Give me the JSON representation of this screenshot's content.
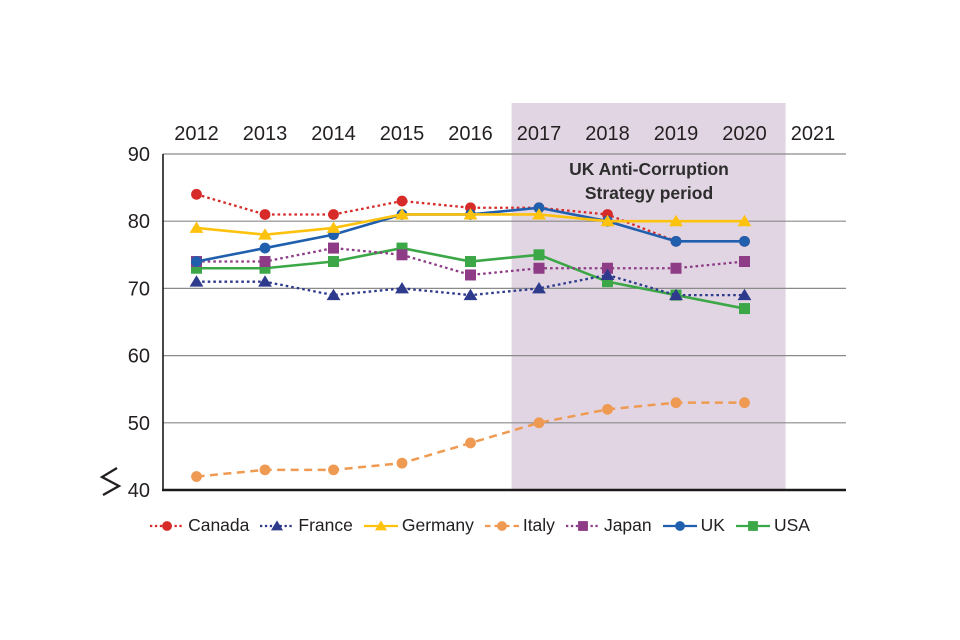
{
  "chart_data": {
    "type": "line",
    "title": "",
    "categories": [
      "2012",
      "2013",
      "2014",
      "2015",
      "2016",
      "2017",
      "2018",
      "2019",
      "2020",
      "2021"
    ],
    "xlabel": "",
    "ylabel": "",
    "ylim": [
      40,
      90
    ],
    "yticks": [
      40,
      50,
      60,
      70,
      80,
      90
    ],
    "axis_break": "y-axis truncated below 40 (zigzag break symbol at lower left)",
    "grid": "horizontal",
    "legend_position": "bottom",
    "series": [
      {
        "name": "Canada",
        "color": "#d62b28",
        "marker": "circle",
        "line_style": "dotted",
        "values": [
          84,
          81,
          81,
          83,
          82,
          82,
          81,
          77,
          77,
          null
        ]
      },
      {
        "name": "France",
        "color": "#2e3a8c",
        "marker": "triangle",
        "line_style": "dotted",
        "values": [
          71,
          71,
          69,
          70,
          69,
          70,
          72,
          69,
          69,
          null
        ]
      },
      {
        "name": "Germany",
        "color": "#fdc20e",
        "marker": "triangle",
        "line_style": "solid",
        "values": [
          79,
          78,
          79,
          81,
          81,
          81,
          80,
          80,
          80,
          null
        ]
      },
      {
        "name": "Italy",
        "color": "#ef9a52",
        "marker": "circle",
        "line_style": "dashed",
        "values": [
          42,
          43,
          43,
          44,
          47,
          50,
          52,
          53,
          53,
          null
        ]
      },
      {
        "name": "Japan",
        "color": "#8d3c85",
        "marker": "square",
        "line_style": "dotted",
        "values": [
          74,
          74,
          76,
          75,
          72,
          73,
          73,
          73,
          74,
          null
        ]
      },
      {
        "name": "UK",
        "color": "#1f5fae",
        "marker": "circle",
        "line_style": "solid",
        "values": [
          74,
          76,
          78,
          81,
          81,
          82,
          80,
          77,
          77,
          null
        ]
      },
      {
        "name": "USA",
        "color": "#3ca747",
        "marker": "square",
        "line_style": "solid",
        "values": [
          73,
          73,
          74,
          76,
          74,
          75,
          71,
          69,
          67,
          null
        ]
      }
    ],
    "draw_order": [
      "Canada",
      "Italy",
      "USA",
      "Japan",
      "France",
      "UK",
      "Germany"
    ],
    "highlight_band": {
      "label": "UK Anti-Corruption Strategy period",
      "label_lines": [
        "UK Anti-Corruption",
        "Strategy period"
      ],
      "x_start": 2016.6,
      "x_end": 2020.6,
      "color": "#e1d5e3"
    }
  },
  "colors": {
    "grid": "#8a8a8a",
    "axis": "#1a1a1a",
    "text": "#231f20",
    "background": "#ffffff"
  }
}
